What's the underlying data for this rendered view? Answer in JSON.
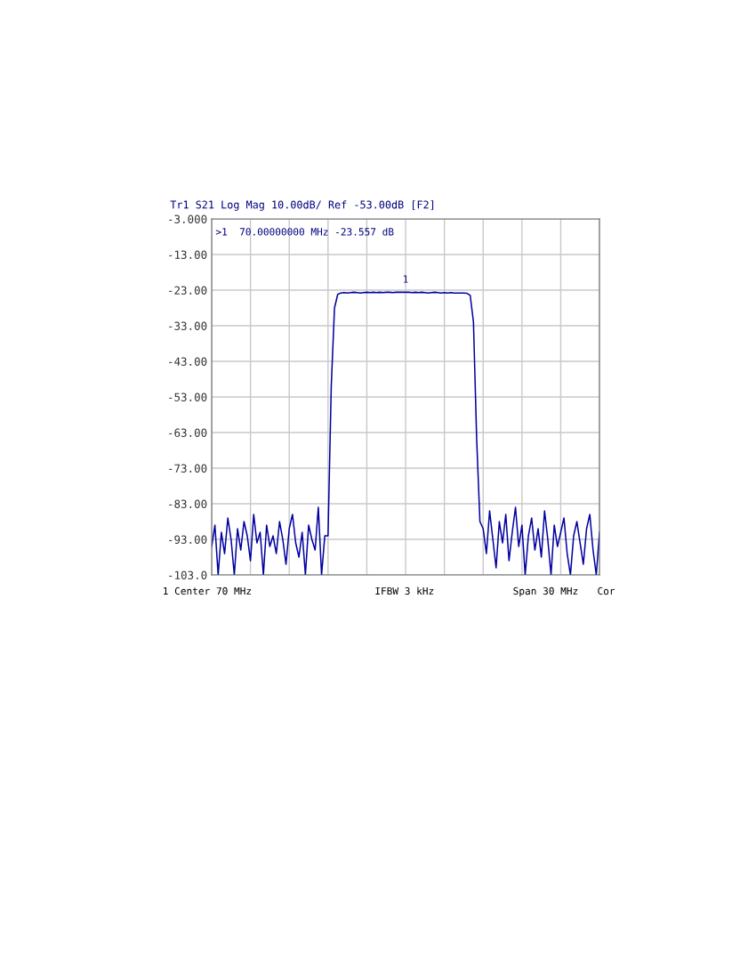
{
  "chart_data": {
    "type": "line",
    "title": "Tr1 S21 Log Mag 10.00dB/ Ref -53.00dB [F2]",
    "categories": [
      null,
      null,
      null,
      null,
      null,
      null,
      null,
      null,
      null,
      null,
      null,
      null,
      null,
      null,
      null,
      null,
      null,
      null,
      null,
      null,
      null,
      null,
      null,
      null,
      null,
      null,
      null,
      null,
      null,
      null,
      null,
      null,
      null,
      null,
      null,
      null,
      null,
      null,
      null,
      null,
      null,
      null,
      null,
      null,
      null,
      null,
      null,
      null,
      null,
      null,
      null,
      null,
      null,
      null,
      null,
      null,
      null,
      null,
      null,
      null,
      null,
      null,
      null,
      null,
      null,
      null,
      null,
      null,
      null,
      null,
      null,
      null,
      null,
      null,
      null,
      null,
      null,
      null,
      null,
      null,
      null,
      null,
      null,
      null,
      null,
      null,
      null,
      null,
      null,
      null,
      null,
      null,
      null,
      null,
      null,
      null,
      null,
      null,
      null,
      null,
      null,
      null,
      null,
      null,
      null,
      null,
      null,
      null,
      null,
      null,
      null,
      null,
      null,
      null,
      null,
      null,
      null,
      null,
      null,
      null,
      null
    ],
    "series": [
      {
        "color": "#0000a0",
        "values": [
          -95,
          -89,
          -103,
          -91,
          -97,
          -87,
          -93,
          -103,
          -90,
          -96,
          -88,
          -92,
          -99,
          -86,
          -94,
          -91,
          -103,
          -89,
          -95,
          -92,
          -97,
          -88,
          -93,
          -100,
          -90,
          -86,
          -94,
          -98,
          -91,
          -103,
          -89,
          -93,
          -96,
          -84,
          -103,
          -92,
          -92,
          -50,
          -28,
          -24.2,
          -23.8,
          -23.7,
          -23.8,
          -23.7,
          -23.6,
          -23.7,
          -23.8,
          -23.7,
          -23.6,
          -23.7,
          -23.6,
          -23.7,
          -23.6,
          -23.7,
          -23.6,
          -23.6,
          -23.7,
          -23.6,
          -23.6,
          -23.6,
          -23.557,
          -23.6,
          -23.7,
          -23.6,
          -23.7,
          -23.6,
          -23.7,
          -23.8,
          -23.7,
          -23.6,
          -23.7,
          -23.8,
          -23.7,
          -23.8,
          -23.7,
          -23.8,
          -23.8,
          -23.8,
          -23.8,
          -23.9,
          -24.5,
          -32,
          -65,
          -88,
          -90,
          -97,
          -85,
          -93,
          -101,
          -88,
          -94,
          -86,
          -99,
          -91,
          -84,
          -95,
          -89,
          -103,
          -92,
          -87,
          -96,
          -90,
          -98,
          -85,
          -93,
          -103,
          -89,
          -95,
          -91,
          -87,
          -97,
          -103,
          -92,
          -88,
          -94,
          -100,
          -90,
          -86,
          -96,
          -103,
          -91
        ]
      }
    ],
    "ylim": [
      -103,
      -3
    ],
    "yticks": [
      {
        "value": -3,
        "label": "-3.000"
      },
      {
        "value": -13,
        "label": "-13.00"
      },
      {
        "value": -23,
        "label": "-23.00"
      },
      {
        "value": -33,
        "label": "-33.00"
      },
      {
        "value": -43,
        "label": "-43.00"
      },
      {
        "value": -53,
        "label": "-53.00"
      },
      {
        "value": -63,
        "label": "-63.00"
      },
      {
        "value": -73,
        "label": "-73.00"
      },
      {
        "value": -83,
        "label": "-83.00"
      },
      {
        "value": -93,
        "label": "-93.00"
      },
      {
        "value": -103,
        "label": "-103.0"
      }
    ],
    "tick_labels": "y",
    "grid": true,
    "marker": "none",
    "line_style": "solid",
    "annotations": [
      ">1  70.00000000 MHz -23.557 dB",
      "1",
      "1 Center 70 MHz",
      "IFBW 3 kHz",
      "Span 30 MHz",
      "Cor"
    ]
  }
}
